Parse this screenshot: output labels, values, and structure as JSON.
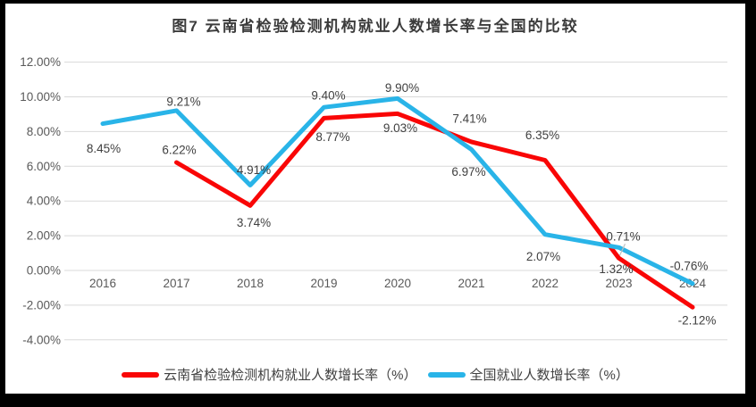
{
  "chart_data": {
    "type": "line",
    "title": "图7  云南省检验检测机构就业人数增长率与全国的比较",
    "xlabel": "",
    "ylabel": "",
    "categories": [
      "2016",
      "2017",
      "2018",
      "2019",
      "2020",
      "2021",
      "2022",
      "2023",
      "2024"
    ],
    "series": [
      {
        "name": "云南省检验检测机构就业人数增长率（%）",
        "color": "#f90606",
        "values": [
          null,
          6.22,
          3.74,
          8.77,
          9.03,
          7.41,
          6.35,
          0.71,
          -2.12
        ],
        "labels": [
          "",
          "6.22%",
          "3.74%",
          "8.77%",
          "9.03%",
          "7.41%",
          "6.35%",
          "0.71%",
          "-2.12%"
        ],
        "label_offsets": [
          null,
          [
            3,
            -14
          ],
          [
            4,
            19
          ],
          [
            10,
            21
          ],
          [
            3,
            16
          ],
          [
            -2,
            -26
          ],
          [
            -3,
            -28
          ],
          [
            5,
            -24
          ],
          [
            5,
            15
          ]
        ]
      },
      {
        "name": "全国就业人数增长率（%）",
        "color": "#29b4e8",
        "values": [
          8.45,
          9.21,
          4.91,
          9.4,
          9.9,
          6.97,
          2.07,
          1.32,
          -0.76
        ],
        "labels": [
          "8.45%",
          "9.21%",
          "4.91%",
          "9.40%",
          "9.90%",
          "6.97%",
          "2.07%",
          "1.32%",
          "-0.76%"
        ],
        "label_offsets": [
          [
            1,
            28
          ],
          [
            8,
            -10
          ],
          [
            4,
            -17
          ],
          [
            5,
            -13
          ],
          [
            5,
            -12
          ],
          [
            -3,
            25
          ],
          [
            -2,
            25
          ],
          [
            -3,
            24
          ],
          [
            -4,
            -20
          ]
        ]
      }
    ],
    "y_ticks": [
      "12.00%",
      "10.00%",
      "8.00%",
      "6.00%",
      "4.00%",
      "2.00%",
      "0.00%",
      "-2.00%",
      "-4.00%"
    ],
    "ylim": [
      -4,
      12
    ],
    "grid": true,
    "legend_position": "bottom",
    "leader_line": {
      "series": 0,
      "index": 7
    }
  },
  "theme": {
    "background": "#ffffff",
    "frame": "#000000",
    "grid": "#d9d9d9",
    "leader": "#bfbfbf",
    "axis_text": "#595959",
    "label_text": "#404040",
    "title_text": "#3b3b3b"
  }
}
